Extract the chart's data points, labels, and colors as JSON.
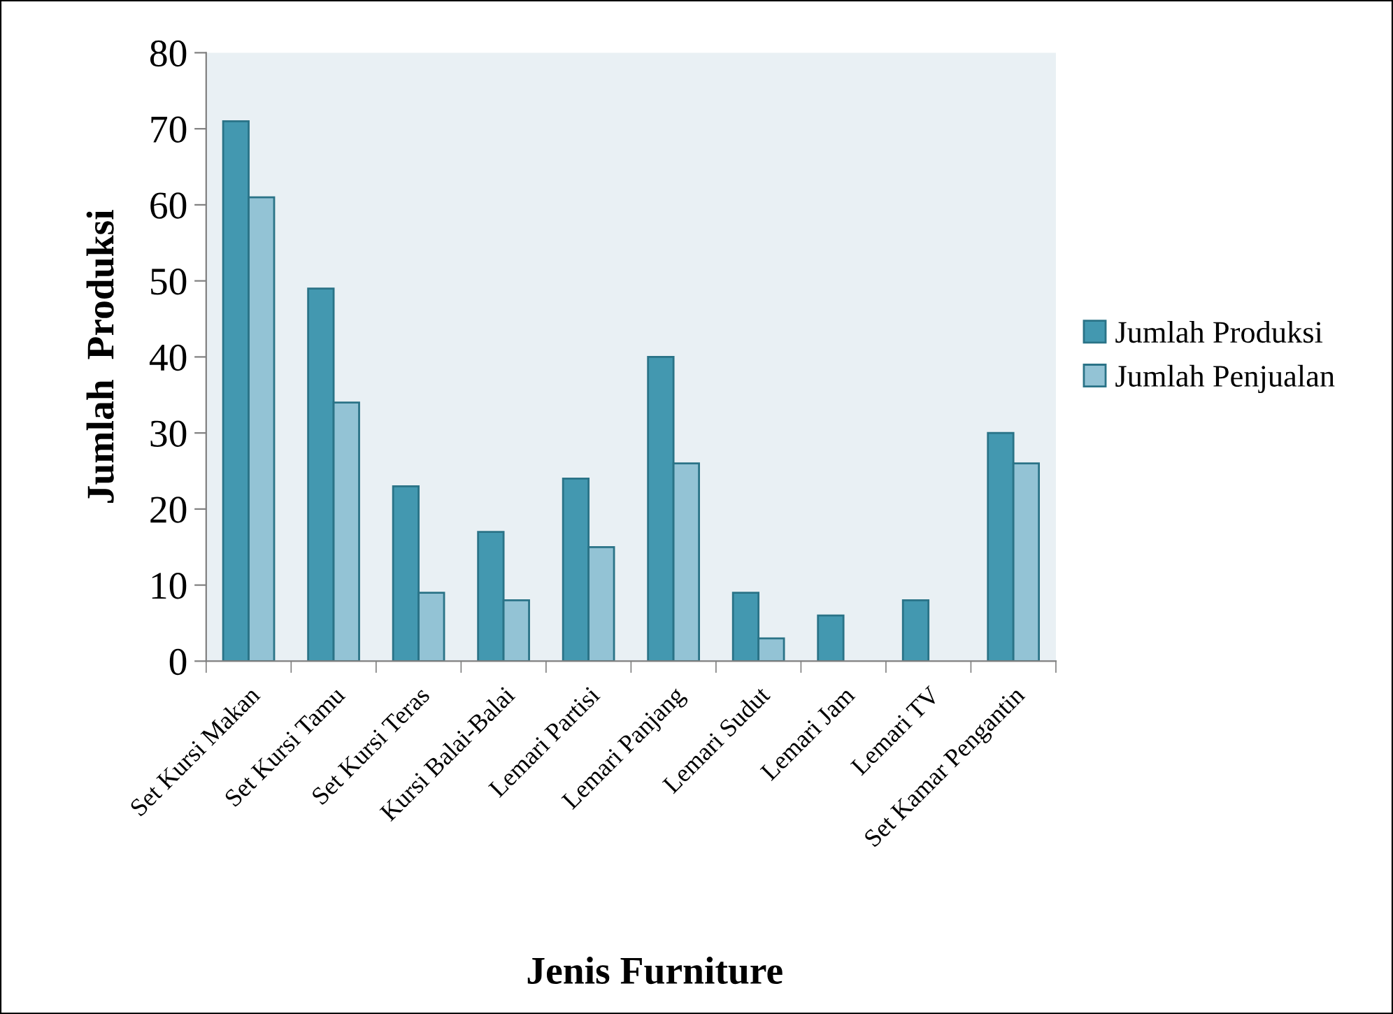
{
  "chart_data": {
    "type": "bar",
    "xlabel": "Jenis Furniture",
    "ylabel": "Jumlah  Produksi",
    "categories": [
      "Set Kursi Makan",
      "Set Kursi Tamu",
      "Set Kursi Teras",
      "Kursi Balai-Balai",
      "Lemari Partisi",
      "Lemari Panjang",
      "Lemari Sudut",
      "Lemari Jam",
      "Lemari TV",
      "Set Kamar Pengantin"
    ],
    "series": [
      {
        "name": "Jumlah Produksi",
        "color": "#4398b0",
        "values": [
          71,
          49,
          23,
          17,
          24,
          40,
          9,
          6,
          8,
          30
        ]
      },
      {
        "name": "Jumlah Penjualan",
        "color": "#93c3d5",
        "values": [
          61,
          34,
          9,
          8,
          15,
          26,
          3,
          null,
          null,
          26
        ]
      }
    ],
    "ylim": [
      0,
      80
    ],
    "yticks": [
      0,
      10,
      20,
      30,
      40,
      50,
      60,
      70,
      80
    ],
    "grid": false,
    "legend": "right"
  }
}
